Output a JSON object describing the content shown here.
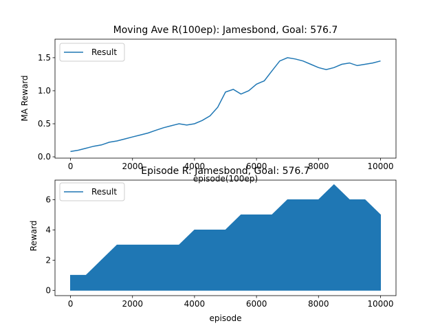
{
  "chart_data": [
    {
      "type": "line",
      "title": "Moving Ave R(100ep): Jamesbond, Goal: 576.7",
      "xlabel": "episode(100ep)",
      "ylabel": "MA Reward",
      "xlim": [
        -500,
        10500
      ],
      "ylim": [
        -0.02,
        1.78
      ],
      "xticks": [
        0,
        2000,
        4000,
        6000,
        8000,
        10000
      ],
      "yticks": [
        0.0,
        0.5,
        1.0,
        1.5
      ],
      "xtick_labels": [
        "0",
        "2000",
        "4000",
        "6000",
        "8000",
        "10000"
      ],
      "ytick_labels": [
        "0.0",
        "0.5",
        "1.0",
        "1.5"
      ],
      "legend": {
        "position": "upper-left",
        "entries": [
          "Result"
        ]
      },
      "grid": false,
      "color": "#1f77b4",
      "series": [
        {
          "name": "Result",
          "x": [
            0,
            250,
            500,
            750,
            1000,
            1250,
            1500,
            1750,
            2000,
            2250,
            2500,
            2750,
            3000,
            3250,
            3500,
            3750,
            4000,
            4250,
            4500,
            4750,
            5000,
            5250,
            5500,
            5750,
            6000,
            6250,
            6500,
            6750,
            7000,
            7250,
            7500,
            7750,
            8000,
            8250,
            8500,
            8750,
            9000,
            9250,
            9500,
            9750,
            10000
          ],
          "values": [
            0.08,
            0.1,
            0.13,
            0.16,
            0.18,
            0.22,
            0.24,
            0.27,
            0.3,
            0.33,
            0.36,
            0.4,
            0.44,
            0.47,
            0.5,
            0.48,
            0.5,
            0.55,
            0.62,
            0.75,
            0.98,
            1.02,
            0.95,
            1.0,
            1.1,
            1.15,
            1.3,
            1.45,
            1.5,
            1.48,
            1.45,
            1.4,
            1.35,
            1.32,
            1.35,
            1.4,
            1.42,
            1.38,
            1.4,
            1.42,
            1.45
          ]
        }
      ]
    },
    {
      "type": "line",
      "title": "Episode R: Jamesbond, Goal: 576.7",
      "xlabel": "episode",
      "ylabel": "Reward",
      "xlim": [
        -500,
        10500
      ],
      "ylim": [
        -0.35,
        7.3
      ],
      "xticks": [
        0,
        2000,
        4000,
        6000,
        8000,
        10000
      ],
      "yticks": [
        0,
        2,
        4,
        6
      ],
      "xtick_labels": [
        "0",
        "2000",
        "4000",
        "6000",
        "8000",
        "10000"
      ],
      "ytick_labels": [
        "0",
        "2",
        "4",
        "6"
      ],
      "legend": {
        "position": "upper-left",
        "entries": [
          "Result"
        ]
      },
      "grid": false,
      "color": "#1f77b4",
      "series": [
        {
          "name": "Result",
          "x": [
            0,
            500,
            1000,
            1500,
            2000,
            2500,
            3000,
            3500,
            4000,
            4500,
            5000,
            5500,
            6000,
            6500,
            7000,
            7500,
            8000,
            8500,
            9000,
            9500,
            10000
          ],
          "max_values": [
            1,
            1,
            2,
            3,
            3,
            3,
            3,
            3,
            4,
            4,
            4,
            5,
            5,
            5,
            6,
            6,
            6,
            7,
            6,
            6,
            5
          ],
          "min_values": [
            0,
            0,
            0,
            0,
            0,
            0,
            0,
            0,
            0,
            0,
            0,
            0,
            0,
            0,
            0,
            0,
            0,
            0,
            0,
            0,
            0
          ]
        }
      ]
    }
  ]
}
